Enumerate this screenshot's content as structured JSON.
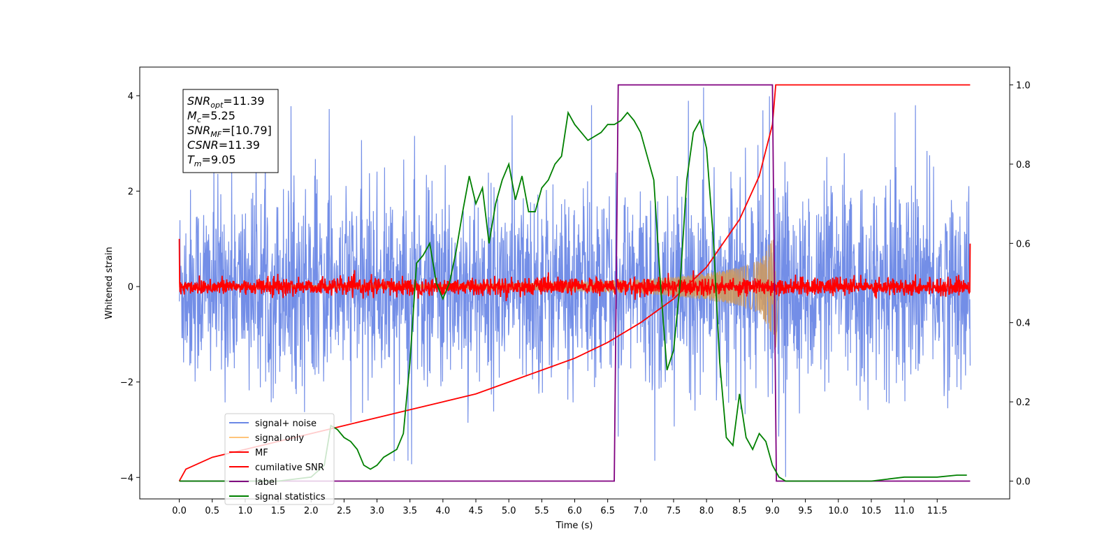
{
  "chart_data": {
    "type": "line",
    "xlabel": "Time (s)",
    "ylabel": "Whitened strain",
    "xlim": [
      -0.6,
      12.6
    ],
    "ylim": [
      -4.45,
      4.6
    ],
    "y2lim": [
      -0.045,
      1.045
    ],
    "xticks": [
      "0.0",
      "0.5",
      "1.0",
      "1.5",
      "2.0",
      "2.5",
      "3.0",
      "3.5",
      "4.0",
      "4.5",
      "5.0",
      "5.5",
      "6.0",
      "6.5",
      "7.0",
      "7.5",
      "8.0",
      "8.5",
      "9.0",
      "9.5",
      "10.0",
      "10.5",
      "11.0",
      "11.5"
    ],
    "yticks": [
      -4,
      -2,
      0,
      2,
      4
    ],
    "y2ticks": [
      0.0,
      0.2,
      0.4,
      0.6,
      0.8,
      1.0
    ],
    "legend_position": "lower-left",
    "grid": false,
    "annotations": [
      {
        "base": "SNR",
        "sub": "opt",
        "value": "=11.39"
      },
      {
        "base": "M",
        "sub": "c",
        "value": "=5.25"
      },
      {
        "base": "SNR",
        "sub": "MF",
        "value": "=[10.79]"
      },
      {
        "base": "CSNR",
        "sub": "",
        "value": "=11.39"
      },
      {
        "base": "T",
        "sub": "m",
        "value": "=9.05"
      }
    ],
    "series": [
      {
        "name": "signal+ noise",
        "color": "#6b88e6",
        "axis": "left",
        "kind": "noise",
        "x_range": [
          0.0,
          12.0
        ],
        "sigma": 1.0,
        "peak_max": 4.2,
        "peak_min": -4.0
      },
      {
        "name": "signal only",
        "color": "#d09a5a",
        "axis": "left",
        "kind": "chirp",
        "x": [
          0.0,
          3.0,
          5.0,
          6.0,
          7.0,
          7.5,
          8.0,
          8.5,
          8.8,
          9.0,
          9.05
        ],
        "amplitude": [
          0.02,
          0.04,
          0.07,
          0.1,
          0.15,
          0.2,
          0.28,
          0.4,
          0.55,
          1.0,
          1.3
        ]
      },
      {
        "name": "MF",
        "color": "#ff0000",
        "axis": "left",
        "kind": "noise-small",
        "x_range": [
          0.0,
          12.0
        ],
        "sigma": 0.09
      },
      {
        "name": "cumilative SNR",
        "color": "#ff0000",
        "axis": "right",
        "x": [
          0.0,
          0.1,
          0.5,
          1.0,
          1.5,
          2.0,
          2.5,
          3.0,
          3.5,
          4.0,
          4.5,
          5.0,
          5.5,
          6.0,
          6.5,
          7.0,
          7.5,
          8.0,
          8.5,
          8.8,
          9.0,
          9.05,
          12.0
        ],
        "values": [
          0.0,
          0.03,
          0.06,
          0.08,
          0.1,
          0.12,
          0.14,
          0.16,
          0.18,
          0.2,
          0.22,
          0.25,
          0.28,
          0.31,
          0.35,
          0.4,
          0.46,
          0.54,
          0.66,
          0.77,
          0.9,
          1.0,
          1.0
        ]
      },
      {
        "name": "label",
        "color": "#800080",
        "axis": "right",
        "x": [
          0.0,
          6.6,
          6.66,
          9.0,
          9.06,
          12.0
        ],
        "values": [
          0.0,
          0.0,
          1.0,
          1.0,
          0.0,
          0.0
        ]
      },
      {
        "name": "signal statistics",
        "color": "#008000",
        "axis": "right",
        "x": [
          0.0,
          0.5,
          1.0,
          1.5,
          2.0,
          2.2,
          2.3,
          2.4,
          2.5,
          2.6,
          2.7,
          2.8,
          2.9,
          3.0,
          3.1,
          3.2,
          3.3,
          3.4,
          3.5,
          3.6,
          3.7,
          3.8,
          3.9,
          4.0,
          4.1,
          4.2,
          4.3,
          4.4,
          4.5,
          4.6,
          4.7,
          4.8,
          4.9,
          5.0,
          5.1,
          5.2,
          5.3,
          5.4,
          5.5,
          5.6,
          5.7,
          5.8,
          5.9,
          6.0,
          6.1,
          6.2,
          6.3,
          6.4,
          6.5,
          6.6,
          6.7,
          6.8,
          6.9,
          7.0,
          7.1,
          7.2,
          7.3,
          7.4,
          7.5,
          7.6,
          7.7,
          7.8,
          7.9,
          8.0,
          8.1,
          8.2,
          8.3,
          8.4,
          8.5,
          8.6,
          8.7,
          8.8,
          8.9,
          9.0,
          9.1,
          9.2,
          9.3,
          9.5,
          10.0,
          10.5,
          11.0,
          11.2,
          11.5,
          11.8,
          11.95
        ],
        "values": [
          0.0,
          0.0,
          0.0,
          0.0,
          0.01,
          0.04,
          0.14,
          0.13,
          0.11,
          0.1,
          0.08,
          0.04,
          0.03,
          0.04,
          0.06,
          0.07,
          0.08,
          0.12,
          0.3,
          0.55,
          0.57,
          0.6,
          0.5,
          0.46,
          0.5,
          0.58,
          0.68,
          0.77,
          0.7,
          0.74,
          0.6,
          0.7,
          0.76,
          0.8,
          0.71,
          0.77,
          0.68,
          0.68,
          0.74,
          0.76,
          0.8,
          0.82,
          0.93,
          0.9,
          0.88,
          0.86,
          0.87,
          0.88,
          0.9,
          0.9,
          0.91,
          0.93,
          0.91,
          0.88,
          0.82,
          0.76,
          0.5,
          0.28,
          0.33,
          0.5,
          0.76,
          0.88,
          0.91,
          0.84,
          0.62,
          0.3,
          0.11,
          0.09,
          0.22,
          0.11,
          0.08,
          0.12,
          0.1,
          0.04,
          0.01,
          0.0,
          0.0,
          0.0,
          0.0,
          0.0,
          0.01,
          0.01,
          0.01,
          0.015,
          0.015
        ]
      }
    ]
  }
}
